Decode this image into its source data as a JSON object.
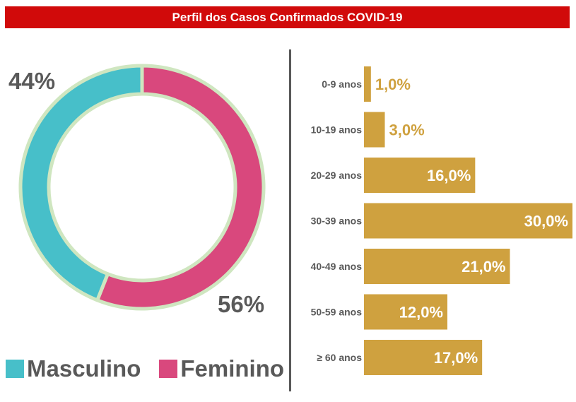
{
  "header": {
    "title": "Perfil dos Casos Confirmados COVID-19"
  },
  "colors": {
    "title_bg": "#d10a0a",
    "masculino": "#47bfc9",
    "feminino": "#d9487d",
    "ring_border": "#cfe6c0",
    "bar": "#cfa13f",
    "text_gray": "#595959"
  },
  "chart_data": [
    {
      "type": "pie",
      "subtype": "donut",
      "categories": [
        "Masculino",
        "Feminino"
      ],
      "values": [
        44,
        56
      ],
      "labels": [
        "44%",
        "56%"
      ],
      "legend": "bottom"
    },
    {
      "type": "bar",
      "orientation": "horizontal",
      "categories": [
        "0-9 anos",
        "10-19 anos",
        "20-29 anos",
        "30-39 anos",
        "40-49 anos",
        "50-59 anos",
        "≥ 60 anos"
      ],
      "values": [
        1.0,
        3.0,
        16.0,
        30.0,
        21.0,
        12.0,
        17.0
      ],
      "labels": [
        "1,0%",
        "3,0%",
        "16,0%",
        "30,0%",
        "21,0%",
        "12,0%",
        "17,0%"
      ],
      "xlim": [
        0,
        30
      ]
    }
  ]
}
